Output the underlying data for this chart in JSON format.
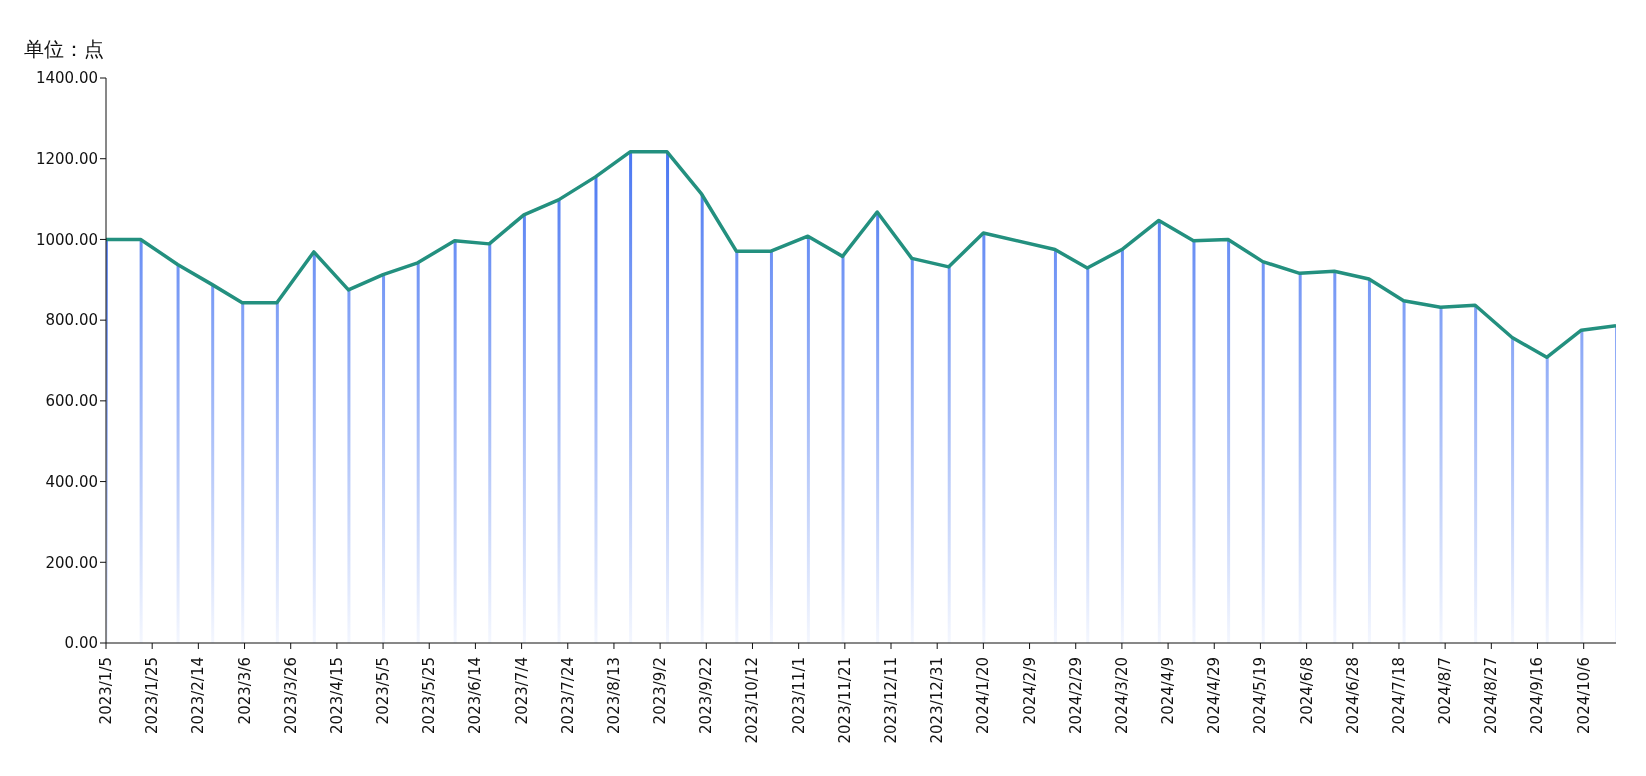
{
  "chart_data": {
    "type": "line",
    "ylabel": "单位：点",
    "x": [
      "2023-01-05",
      "2023-01-20",
      "2023-02-05",
      "2023-02-20",
      "2023-03-05",
      "2023-03-20",
      "2023-04-05",
      "2023-04-20",
      "2023-05-05",
      "2023-05-20",
      "2023-06-05",
      "2023-06-20",
      "2023-07-05",
      "2023-07-20",
      "2023-08-05",
      "2023-08-20",
      "2023-09-05",
      "2023-09-20",
      "2023-10-05",
      "2023-10-20",
      "2023-11-05",
      "2023-11-20",
      "2023-12-05",
      "2023-12-20",
      "2024-01-05",
      "2024-01-20",
      "2024-02-20",
      "2024-03-05",
      "2024-03-20",
      "2024-04-05",
      "2024-04-20",
      "2024-05-05",
      "2024-05-20",
      "2024-06-05",
      "2024-06-20",
      "2024-07-05",
      "2024-07-20",
      "2024-08-05",
      "2024-08-20",
      "2024-09-05",
      "2024-09-20",
      "2024-10-05",
      "2024-10-20"
    ],
    "series": [
      {
        "type": "bar",
        "color": "#2f63f0",
        "values": [
          1000,
          1000,
          938,
          888,
          843,
          843,
          969,
          875,
          913,
          942,
          997,
          989,
          1061,
          1098,
          1155,
          1217,
          1217,
          1112,
          971,
          971,
          1008,
          958,
          1068,
          953,
          932,
          1016,
          975,
          929,
          975,
          1047,
          997,
          1000,
          945,
          916,
          921,
          902,
          848,
          832,
          837,
          757,
          708,
          775,
          786
        ]
      },
      {
        "color": "#23907f",
        "values": [
          1000,
          1000,
          938,
          888,
          843,
          843,
          969,
          875,
          913,
          942,
          997,
          989,
          1061,
          1098,
          1155,
          1217,
          1217,
          1112,
          971,
          971,
          1008,
          958,
          1068,
          953,
          932,
          1016,
          975,
          929,
          975,
          1047,
          997,
          1000,
          945,
          916,
          921,
          902,
          848,
          832,
          837,
          757,
          708,
          775,
          786
        ]
      }
    ],
    "xlim": [
      "2023-01-05",
      "2024-10-20"
    ],
    "xticks": [
      {
        "value": "2023-01-05",
        "label": "2023/1/5"
      },
      {
        "value": "2023-01-25",
        "label": "2023/1/25"
      },
      {
        "value": "2023-02-14",
        "label": "2023/2/14"
      },
      {
        "value": "2023-03-06",
        "label": "2023/3/6"
      },
      {
        "value": "2023-03-26",
        "label": "2023/3/26"
      },
      {
        "value": "2023-04-15",
        "label": "2023/4/15"
      },
      {
        "value": "2023-05-05",
        "label": "2023/5/5"
      },
      {
        "value": "2023-05-25",
        "label": "2023/5/25"
      },
      {
        "value": "2023-06-14",
        "label": "2023/6/14"
      },
      {
        "value": "2023-07-04",
        "label": "2023/7/4"
      },
      {
        "value": "2023-07-24",
        "label": "2023/7/24"
      },
      {
        "value": "2023-08-13",
        "label": "2023/8/13"
      },
      {
        "value": "2023-09-02",
        "label": "2023/9/2"
      },
      {
        "value": "2023-09-22",
        "label": "2023/9/22"
      },
      {
        "value": "2023-10-12",
        "label": "2023/10/12"
      },
      {
        "value": "2023-11-01",
        "label": "2023/11/1"
      },
      {
        "value": "2023-11-21",
        "label": "2023/11/21"
      },
      {
        "value": "2023-12-11",
        "label": "2023/12/11"
      },
      {
        "value": "2023-12-31",
        "label": "2023/12/31"
      },
      {
        "value": "2024-01-20",
        "label": "2024/1/20"
      },
      {
        "value": "2024-02-09",
        "label": "2024/2/9"
      },
      {
        "value": "2024-02-29",
        "label": "2024/2/29"
      },
      {
        "value": "2024-03-20",
        "label": "2024/3/20"
      },
      {
        "value": "2024-04-09",
        "label": "2024/4/9"
      },
      {
        "value": "2024-04-29",
        "label": "2024/4/29"
      },
      {
        "value": "2024-05-19",
        "label": "2024/5/19"
      },
      {
        "value": "2024-06-08",
        "label": "2024/6/8"
      },
      {
        "value": "2024-06-28",
        "label": "2024/6/28"
      },
      {
        "value": "2024-07-18",
        "label": "2024/7/18"
      },
      {
        "value": "2024-08-07",
        "label": "2024/8/7"
      },
      {
        "value": "2024-08-27",
        "label": "2024/8/27"
      },
      {
        "value": "2024-09-16",
        "label": "2024/9/16"
      },
      {
        "value": "2024-10-06",
        "label": "2024/10/6"
      }
    ],
    "ylim": [
      0,
      1400
    ],
    "yticks": [
      {
        "value": 0,
        "label": "0.00"
      },
      {
        "value": 200,
        "label": "200.00"
      },
      {
        "value": 400,
        "label": "400.00"
      },
      {
        "value": 600,
        "label": "600.00"
      },
      {
        "value": 800,
        "label": "800.00"
      },
      {
        "value": 1000,
        "label": "1000.00"
      },
      {
        "value": 1200,
        "label": "1200.00"
      },
      {
        "value": 1400,
        "label": "1400.00"
      }
    ],
    "grid": false,
    "legend": false,
    "marker": "none",
    "line_style": "solid"
  }
}
